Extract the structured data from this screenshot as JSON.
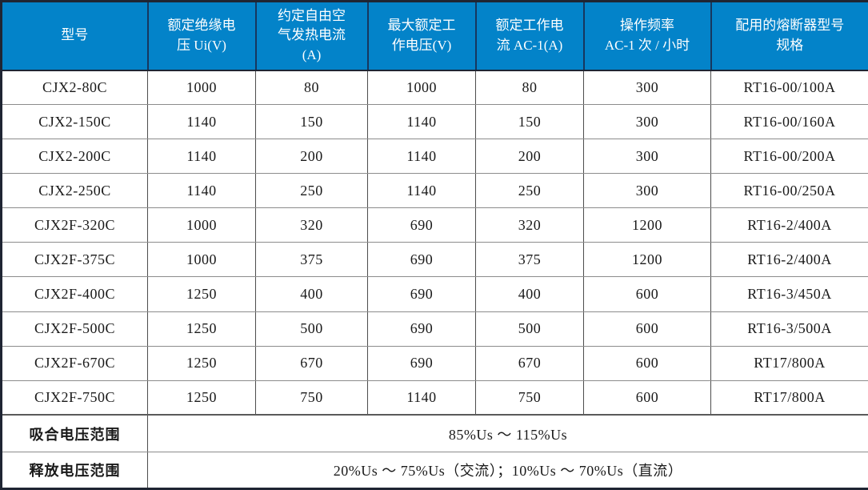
{
  "table": {
    "title_semantic": "contactor-specification-table",
    "header": {
      "columns": [
        "型号",
        "额定绝缘电\n压 Ui(V)",
        "约定自由空\n气发热电流\n(A)",
        "最大额定工\n作电压(V)",
        "额定工作电\n流 AC-1(A)",
        "操作频率\nAC-1 次 / 小时",
        "配用的熔断器型号\n规格"
      ]
    },
    "rows": [
      [
        "CJX2-80C",
        "1000",
        "80",
        "1000",
        "80",
        "300",
        "RT16-00/100A"
      ],
      [
        "CJX2-150C",
        "1140",
        "150",
        "1140",
        "150",
        "300",
        "RT16-00/160A"
      ],
      [
        "CJX2-200C",
        "1140",
        "200",
        "1140",
        "200",
        "300",
        "RT16-00/200A"
      ],
      [
        "CJX2-250C",
        "1140",
        "250",
        "1140",
        "250",
        "300",
        "RT16-00/250A"
      ],
      [
        "CJX2F-320C",
        "1000",
        "320",
        "690",
        "320",
        "1200",
        "RT16-2/400A"
      ],
      [
        "CJX2F-375C",
        "1000",
        "375",
        "690",
        "375",
        "1200",
        "RT16-2/400A"
      ],
      [
        "CJX2F-400C",
        "1250",
        "400",
        "690",
        "400",
        "600",
        "RT16-3/450A"
      ],
      [
        "CJX2F-500C",
        "1250",
        "500",
        "690",
        "500",
        "600",
        "RT16-3/500A"
      ],
      [
        "CJX2F-670C",
        "1250",
        "670",
        "690",
        "670",
        "600",
        "RT17/800A"
      ],
      [
        "CJX2F-750C",
        "1250",
        "750",
        "1140",
        "750",
        "600",
        "RT17/800A"
      ]
    ],
    "footer": [
      {
        "label": "吸合电压范围",
        "value": "85%Us ～ 115%Us"
      },
      {
        "label": "释放电压范围",
        "value": "20%Us ～ 75%Us（交流）；10%Us ～ 70%Us（直流）"
      }
    ]
  },
  "colors": {
    "header_background": "#0383c9",
    "header_divider": "#17375e",
    "header_text": "#ffffff",
    "grid_horizontal": "#8c8c8c",
    "grid_vertical": "#4d4d4d",
    "outer_border": "#1f2533",
    "body_text": "#1a1a1a"
  }
}
